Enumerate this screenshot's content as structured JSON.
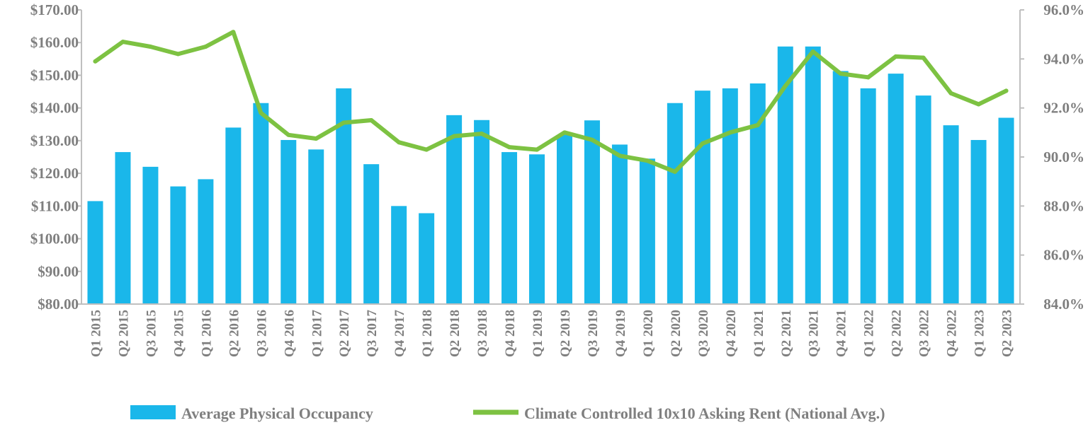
{
  "chart_data": {
    "type": "bar+line",
    "categories": [
      "Q1 2015",
      "Q2 2015",
      "Q3 2015",
      "Q4 2015",
      "Q1 2016",
      "Q2 2016",
      "Q3 2016",
      "Q4 2016",
      "Q1 2017",
      "Q2 2017",
      "Q3 2017",
      "Q4 2017",
      "Q1 2018",
      "Q2 2018",
      "Q3 2018",
      "Q4 2018",
      "Q1 2019",
      "Q2 2019",
      "Q3 2019",
      "Q4 2019",
      "Q1 2020",
      "Q2 2020",
      "Q3 2020",
      "Q4 2020",
      "Q1 2021",
      "Q2 2021",
      "Q3 2021",
      "Q4 2021",
      "Q1 2022",
      "Q2 2022",
      "Q3 2022",
      "Q4 2022",
      "Q1 2023",
      "Q2 2023"
    ],
    "series": [
      {
        "name": "Average Physical Occupancy",
        "kind": "bar",
        "axis": "left",
        "color": "#1ab7ea",
        "values": [
          111.5,
          126.5,
          122.0,
          116.0,
          118.2,
          134.0,
          141.5,
          130.2,
          127.3,
          146.0,
          122.8,
          110.0,
          107.8,
          137.8,
          136.3,
          126.5,
          125.8,
          131.8,
          136.2,
          128.8,
          124.5,
          141.5,
          145.3,
          146.0,
          147.5,
          158.8,
          158.8,
          151.3,
          146.0,
          150.5,
          143.8,
          134.7,
          130.2,
          137.0
        ]
      },
      {
        "name": "Climate Controlled 10x10 Asking Rent (National Avg.)",
        "kind": "line",
        "axis": "right",
        "color": "#7dc242",
        "values": [
          93.9,
          94.7,
          94.5,
          94.2,
          94.5,
          95.1,
          91.8,
          90.9,
          90.75,
          91.4,
          91.5,
          90.6,
          90.3,
          90.85,
          90.95,
          90.4,
          90.3,
          91.0,
          90.7,
          90.05,
          89.85,
          89.4,
          90.55,
          91.0,
          91.3,
          92.9,
          94.3,
          93.4,
          93.25,
          94.1,
          94.05,
          92.6,
          92.15,
          92.7
        ]
      }
    ],
    "y_left": {
      "ylim": [
        80,
        170
      ],
      "ticks": [
        80,
        90,
        100,
        110,
        120,
        130,
        140,
        150,
        160,
        170
      ],
      "tick_labels": [
        "$80.00",
        "$90.00",
        "$100.00",
        "$110.00",
        "$120.00",
        "$130.00",
        "$140.00",
        "$150.00",
        "$160.00",
        "$170.00"
      ]
    },
    "y_right": {
      "ylim": [
        84,
        96
      ],
      "ticks": [
        84,
        86,
        88,
        90,
        92,
        94,
        96
      ],
      "tick_labels": [
        "84.0%",
        "86.0%",
        "88.0%",
        "90.0%",
        "92.0%",
        "94.0%",
        "96.0%"
      ]
    },
    "title": "",
    "xlabel": "",
    "grid": false,
    "legend_position": "bottom"
  }
}
